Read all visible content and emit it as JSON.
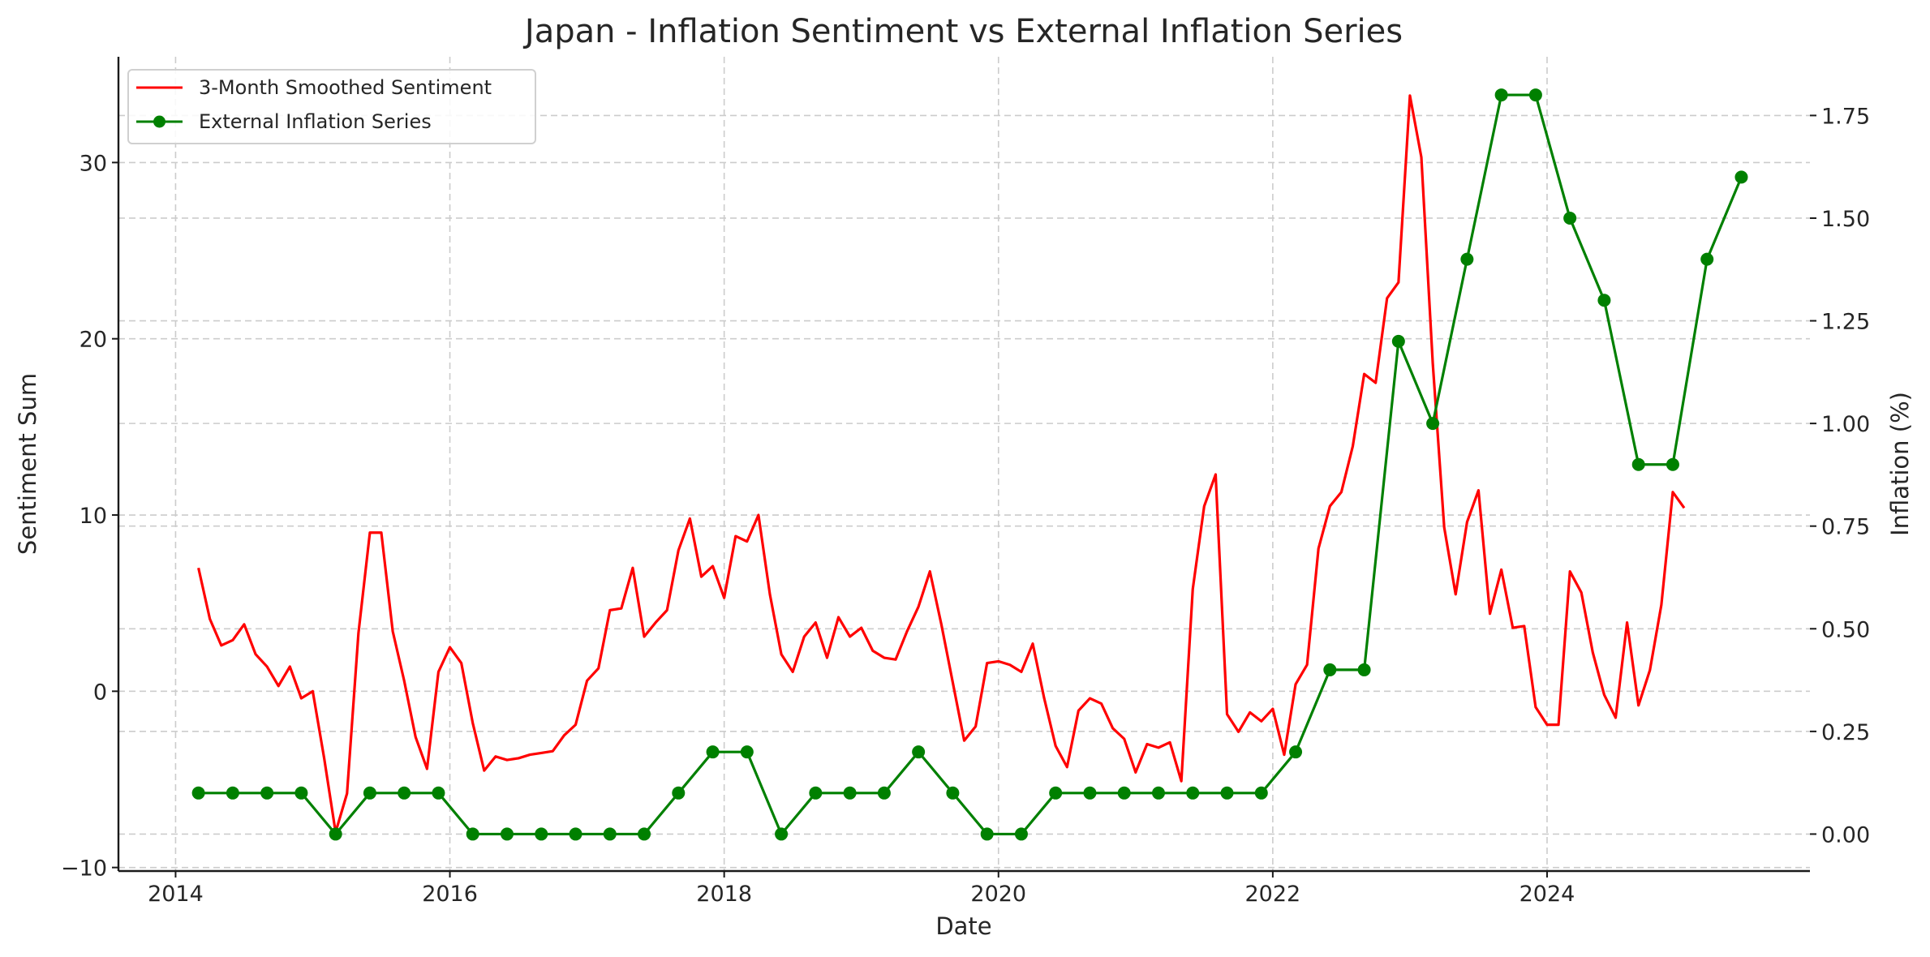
{
  "chart_data": {
    "type": "line",
    "title": "Japan - Inflation Sentiment vs External Inflation Series",
    "xlabel": "Date",
    "ylabel": "Sentiment Sum",
    "ylabel_right": "Inflation (%)",
    "xlim": [
      "2013-08",
      "2025-12"
    ],
    "ylim": [
      -10.2,
      36
    ],
    "ylim_right": [
      -0.09,
      1.893
    ],
    "x_ticks": [
      "2014",
      "2016",
      "2018",
      "2020",
      "2022",
      "2024"
    ],
    "y_ticks": [
      "−10",
      "0",
      "10",
      "20",
      "30"
    ],
    "y_ticks_right": [
      "0.00",
      "0.25",
      "0.50",
      "0.75",
      "1.00",
      "1.25",
      "1.50",
      "1.75"
    ],
    "grid": true,
    "legend_position": "top-left",
    "series": [
      {
        "name": "3-Month Smoothed Sentiment",
        "axis": "left",
        "color": "#ff0000",
        "marker": "none",
        "start": "2014-03",
        "frequency": "monthly",
        "values": [
          7.0,
          4.1,
          2.6,
          2.9,
          3.8,
          2.1,
          1.4,
          0.3,
          1.4,
          -0.4,
          0.0,
          -3.8,
          -8.0,
          -5.8,
          3.3,
          9.0,
          9.0,
          3.4,
          0.6,
          -2.6,
          -4.4,
          1.1,
          2.5,
          1.6,
          -1.8,
          -4.5,
          -3.7,
          -3.9,
          -3.8,
          -3.6,
          -3.5,
          -3.4,
          -2.5,
          -1.9,
          0.6,
          1.3,
          4.6,
          4.7,
          7.0,
          3.1,
          3.9,
          4.6,
          8.0,
          9.8,
          6.5,
          7.1,
          5.3,
          8.8,
          8.5,
          10.0,
          5.5,
          2.1,
          1.1,
          3.1,
          3.9,
          1.9,
          4.2,
          3.1,
          3.6,
          2.3,
          1.9,
          1.8,
          3.4,
          4.8,
          6.8,
          3.8,
          0.5,
          -2.8,
          -2.0,
          1.6,
          1.7,
          1.5,
          1.1,
          2.7,
          -0.4,
          -3.1,
          -4.3,
          -1.1,
          -0.4,
          -0.7,
          -2.1,
          -2.7,
          -4.6,
          -3.0,
          -3.2,
          -2.9,
          -5.1,
          5.8,
          10.5,
          12.3,
          -1.3,
          -2.3,
          -1.2,
          -1.7,
          -1.0,
          -3.6,
          0.4,
          1.5,
          8.1,
          10.5,
          11.3,
          13.9,
          18.0,
          17.5,
          22.3,
          23.2,
          33.8,
          30.3,
          18.6,
          9.3,
          5.5,
          9.6,
          11.4,
          4.4,
          6.9,
          3.6,
          3.7,
          -0.9,
          -1.9,
          -1.9,
          6.8,
          5.6,
          2.2,
          -0.2,
          -1.5,
          3.9,
          -0.8,
          1.2,
          4.9,
          11.3,
          10.4
        ]
      },
      {
        "name": "External Inflation Series",
        "axis": "right",
        "color": "#008000",
        "marker": "circle",
        "start": "2014-03",
        "frequency": "quarterly",
        "values": [
          0.1,
          0.1,
          0.1,
          0.1,
          0.0,
          0.1,
          0.1,
          0.1,
          0.0,
          0.0,
          0.0,
          0.0,
          0.0,
          0.0,
          0.1,
          0.2,
          0.2,
          0.0,
          0.1,
          0.1,
          0.1,
          0.2,
          0.1,
          0.0,
          0.0,
          0.1,
          0.1,
          0.1,
          0.1,
          0.1,
          0.1,
          0.1,
          0.2,
          0.4,
          0.4,
          1.2,
          1.0,
          1.4,
          1.8,
          1.8,
          1.5,
          1.3,
          0.9,
          0.9,
          1.4,
          1.6
        ]
      }
    ]
  }
}
